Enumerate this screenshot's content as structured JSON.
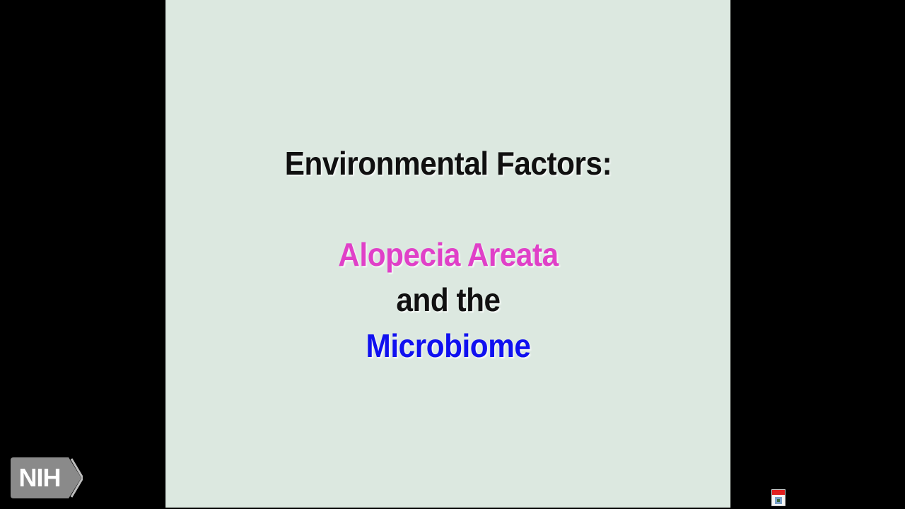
{
  "slide": {
    "title": "Environmental Factors:",
    "line1": "Alopecia Areata",
    "line2": "and the",
    "line3": "Microbiome"
  },
  "colors": {
    "slide_background": "#dce8e0",
    "title_text": "#101010",
    "line1_text": "#e040c8",
    "line2_text": "#111111",
    "line3_text": "#1010f0",
    "logo_background": "#8a8a8a"
  },
  "logo": {
    "text": "NIH",
    "icon": "nih-chevron-logo"
  },
  "tray": {
    "icon": "app-tray-icon"
  }
}
